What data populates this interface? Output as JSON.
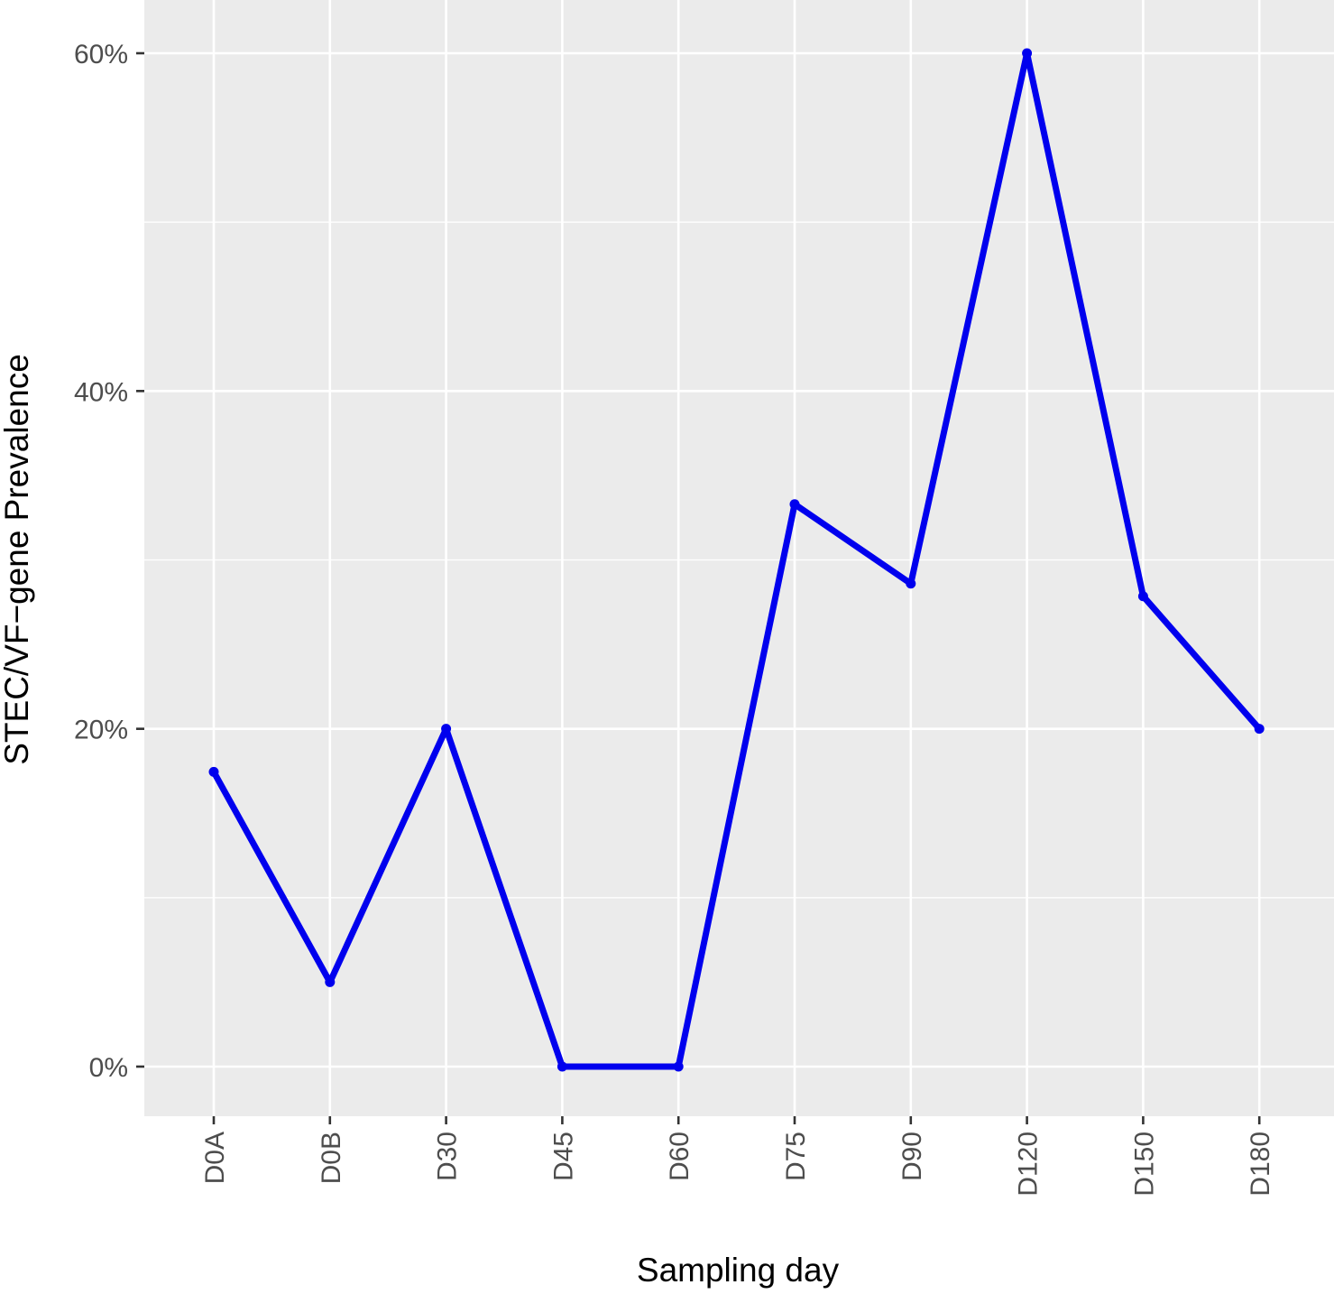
{
  "chart_data": {
    "type": "line",
    "title": "",
    "xlabel": "Sampling day",
    "ylabel": "STEC/VF−gene Prevalence",
    "categories": [
      "D0A",
      "D0B",
      "D30",
      "D45",
      "D60",
      "D75",
      "D90",
      "D120",
      "D150",
      "D180"
    ],
    "series": [
      {
        "values": [
          0.1745,
          0.05,
          0.2,
          0.0,
          0.0,
          0.333,
          0.286,
          0.6,
          0.2785,
          0.2
        ]
      }
    ],
    "ylim": [
      -0.03,
      0.63
    ],
    "y_ticks": [
      0,
      0.2,
      0.4,
      0.6
    ],
    "y_tick_labels": [
      "0%",
      "20%",
      "40%",
      "60%"
    ],
    "y_minor_ticks": [
      0.1,
      0.3,
      0.5
    ],
    "grid": true,
    "legend": "none",
    "colors": {
      "series": "#0000ee",
      "panel_background": "#ebebeb",
      "grid": "#ffffff",
      "tick_label": "#4d4d4d",
      "axis_title": "#000000"
    }
  }
}
